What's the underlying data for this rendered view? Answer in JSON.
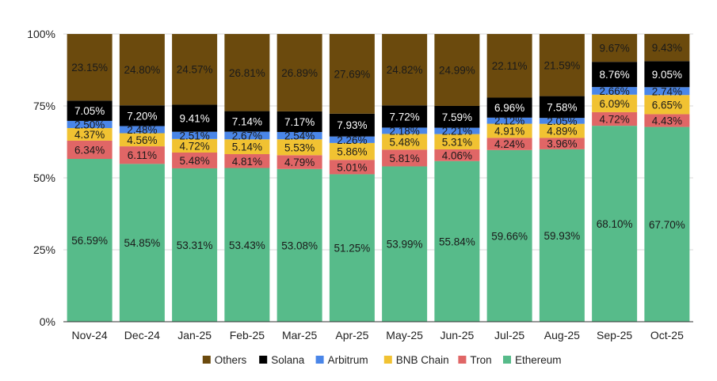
{
  "chart_data": {
    "type": "bar",
    "stacked": true,
    "percent": true,
    "title": "",
    "xlabel": "",
    "ylabel": "",
    "ylim": [
      0,
      100
    ],
    "yticks": [
      "0%",
      "25%",
      "50%",
      "75%",
      "100%"
    ],
    "ytick_values": [
      0,
      25,
      50,
      75,
      100
    ],
    "categories": [
      "Nov-24",
      "Dec-24",
      "Jan-25",
      "Feb-25",
      "Mar-25",
      "Apr-25",
      "May-25",
      "Jun-25",
      "Jul-25",
      "Aug-25",
      "Sep-25",
      "Oct-25"
    ],
    "series": [
      {
        "name": "Ethereum",
        "color": "#57bb8a",
        "values": [
          56.59,
          54.85,
          53.31,
          53.43,
          53.08,
          51.25,
          53.99,
          55.84,
          59.66,
          59.93,
          68.1,
          67.7
        ],
        "labels": [
          "56.59%",
          "54.85%",
          "53.31%",
          "53.43%",
          "53.08%",
          "51.25%",
          "53.99%",
          "55.84%",
          "59.66%",
          "59.93%",
          "68.10%",
          "67.70%"
        ]
      },
      {
        "name": "Tron",
        "color": "#e06666",
        "values": [
          6.34,
          6.11,
          5.48,
          4.81,
          4.79,
          5.01,
          5.81,
          4.06,
          4.24,
          3.96,
          4.72,
          4.43
        ],
        "labels": [
          "6.34%",
          "6.11%",
          "5.48%",
          "4.81%",
          "4.79%",
          "5.01%",
          "5.81%",
          "4.06%",
          "4.24%",
          "3.96%",
          "4.72%",
          "4.43%"
        ]
      },
      {
        "name": "BNB Chain",
        "color": "#f1c232",
        "values": [
          4.37,
          4.56,
          4.72,
          5.14,
          5.53,
          5.86,
          5.48,
          5.31,
          4.91,
          4.89,
          6.09,
          6.65
        ],
        "labels": [
          "4.37%",
          "4.56%",
          "4.72%",
          "5.14%",
          "5.53%",
          "5.86%",
          "5.48%",
          "5.31%",
          "4.91%",
          "4.89%",
          "6.09%",
          "6.65%"
        ]
      },
      {
        "name": "Arbitrum",
        "color": "#4a86e8",
        "values": [
          2.5,
          2.48,
          2.51,
          2.67,
          2.54,
          2.26,
          2.18,
          2.21,
          2.12,
          2.05,
          2.66,
          2.74
        ],
        "labels": [
          "2.50%",
          "2.48%",
          "2.51%",
          "2.67%",
          "2.54%",
          "2.26%",
          "2.18%",
          "2.21%",
          "2.12%",
          "2.05%",
          "2.66%",
          "2.74%"
        ]
      },
      {
        "name": "Solana",
        "color": "#000000",
        "values": [
          7.05,
          7.2,
          9.41,
          7.14,
          7.17,
          7.93,
          7.72,
          7.59,
          6.96,
          7.58,
          8.76,
          9.05
        ],
        "labels": [
          "7.05%",
          "7.20%",
          "9.41%",
          "7.14%",
          "7.17%",
          "7.93%",
          "7.72%",
          "7.59%",
          "6.96%",
          "7.58%",
          "8.76%",
          "9.05%"
        ]
      },
      {
        "name": "Others",
        "color": "#6b4a0d",
        "values": [
          23.15,
          24.8,
          24.57,
          26.81,
          26.89,
          27.69,
          24.82,
          24.99,
          22.11,
          21.59,
          9.67,
          9.43
        ],
        "labels": [
          "23.15%",
          "24.80%",
          "24.57%",
          "26.81%",
          "26.89%",
          "27.69%",
          "24.82%",
          "24.99%",
          "22.11%",
          "21.59%",
          "9.67%",
          "9.43%"
        ]
      }
    ],
    "legend": {
      "position": "bottom",
      "order": [
        "Others",
        "Solana",
        "Arbitrum",
        "BNB Chain",
        "Tron",
        "Ethereum"
      ]
    },
    "grid": true
  }
}
